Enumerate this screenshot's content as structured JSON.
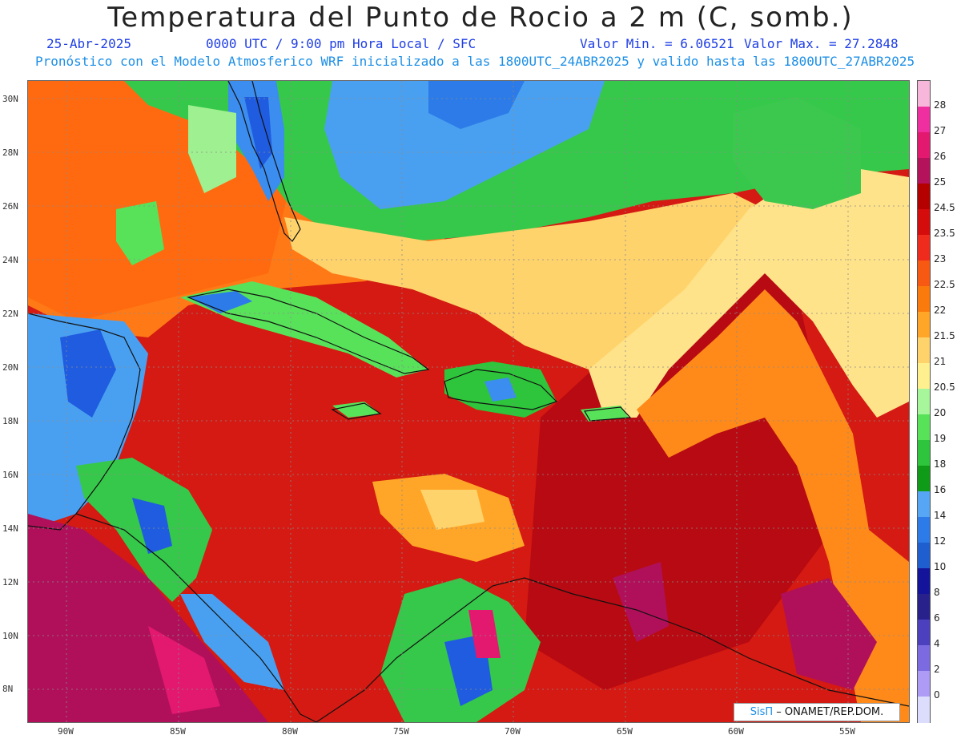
{
  "header": {
    "title": "Temperatura del Punto de Rocio a 2 m (C, somb.)",
    "date": "25-Abr-2025",
    "time": "0000 UTC / 9:00 pm Hora Local / SFC",
    "min": "Valor Min. = 6.06521",
    "max": "Valor Max. = 27.2848",
    "forecast": "Pronóstico con el Modelo Atmosferico WRF inicializado a las 1800UTC_24ABR2025 y valido hasta las  1800UTC_27ABR2025"
  },
  "map": {
    "lat_labels": [
      "30N",
      "28N",
      "26N",
      "24N",
      "22N",
      "20N",
      "18N",
      "16N",
      "14N",
      "12N",
      "10N",
      "8N"
    ],
    "lon_labels": [
      "90W",
      "85W",
      "80W",
      "75W",
      "70W",
      "65W",
      "60W",
      "55W"
    ],
    "colors": {
      "sea_base": "#d41a12",
      "gulf": "#ff6a10",
      "north_band": "#36c84a",
      "northeast_green": "#3cc84e",
      "blue_zone": "#4aa0f0",
      "deep_blue": "#1f5ce0",
      "magenta": "#b0105a",
      "pale_green": "#9ff090",
      "yellow": "#ffe38a",
      "orange": "#ffa628",
      "dark_red": "#b80a12"
    }
  },
  "colorbar": {
    "labels": [
      "28",
      "27",
      "26",
      "25",
      "24.5",
      "23.5",
      "23",
      "22.5",
      "22",
      "21.5",
      "21",
      "20.5",
      "20",
      "19",
      "18",
      "16",
      "14",
      "12",
      "10",
      "8",
      "6",
      "4",
      "2",
      "0"
    ],
    "colors": [
      "#f7b7da",
      "#ef2ea0",
      "#e3186f",
      "#b4125a",
      "#b50000",
      "#d50c0c",
      "#ee2b1c",
      "#f75912",
      "#fb7a0c",
      "#ffa528",
      "#ffd36c",
      "#fff08f",
      "#a8f69c",
      "#58e25a",
      "#2ec43b",
      "#0f9a17",
      "#56a6f5",
      "#2c7be8",
      "#1f5ecf",
      "#13149a",
      "#28218b",
      "#4d40bf",
      "#7c6be0",
      "#ad9bf6",
      "#dcdcfc"
    ]
  },
  "credit": {
    "sis": "SisΠ",
    "org": "– ONAMET/REP.DOM."
  }
}
